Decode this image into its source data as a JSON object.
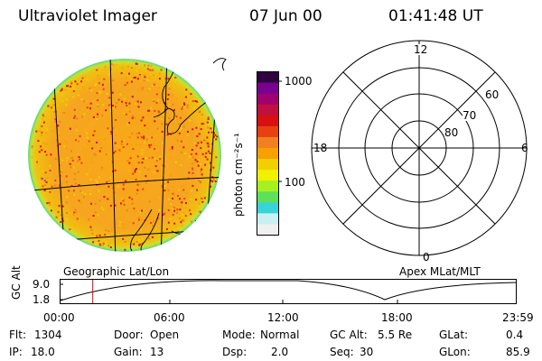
{
  "header": {
    "instrument": "Ultraviolet Imager",
    "date": "07 Jun 00",
    "time": "01:41:48 UT"
  },
  "colorbar": {
    "label": "photon cm⁻²s⁻¹",
    "ticks": [
      "1000",
      "100"
    ],
    "scale": "log",
    "colors": [
      "#f0f0f0",
      "#c8f0f0",
      "#39d4d8",
      "#5fe05a",
      "#a6f020",
      "#f0f000",
      "#f0d000",
      "#f8a000",
      "#f08020",
      "#e84010",
      "#d81010",
      "#c01040",
      "#a00070",
      "#7a0090",
      "#300040"
    ]
  },
  "image_panel": {
    "caption": "Geographic Lat/Lon"
  },
  "polar_panel": {
    "caption": "Apex MLat/MLT",
    "mlt_labels": [
      "12",
      "18",
      "6",
      "0"
    ],
    "mlat_labels": [
      "60",
      "70",
      "80"
    ]
  },
  "altitude_plot": {
    "ylabel": "GC Alt",
    "yticks": [
      "9.0",
      "1.8"
    ],
    "xticks": [
      "00:00",
      "06:00",
      "12:00",
      "18:00",
      "23:59"
    ],
    "current_time_marker_hours": 1.7
  },
  "info": {
    "flt_label": "Flt:",
    "flt_value": "1304",
    "ip_label": "IP:",
    "ip_value": "18.0",
    "door_label": "Door:",
    "door_value": "Open",
    "gain_label": "Gain:",
    "gain_value": "13",
    "mode_label": "Mode:",
    "mode_value": "Normal",
    "dsp_label": "Dsp:",
    "dsp_value": "2.0",
    "gcalt_label": "GC Alt:",
    "gcalt_value": "5.5 Re",
    "seq_label": "Seq:",
    "seq_value": "30",
    "glat_label": "GLat:",
    "glat_value": "0.4",
    "glon_label": "GLon:",
    "glon_value": "85.9"
  }
}
